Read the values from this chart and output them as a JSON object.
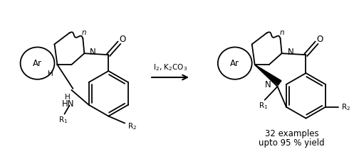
{
  "figsize": [
    4.97,
    2.17
  ],
  "dpi": 100,
  "bg_color": "#ffffff",
  "arrow_label": "I$_2$, K$_2$CO$_3$",
  "text_examples": "32 examples",
  "text_yield": "upto 95 % yield"
}
